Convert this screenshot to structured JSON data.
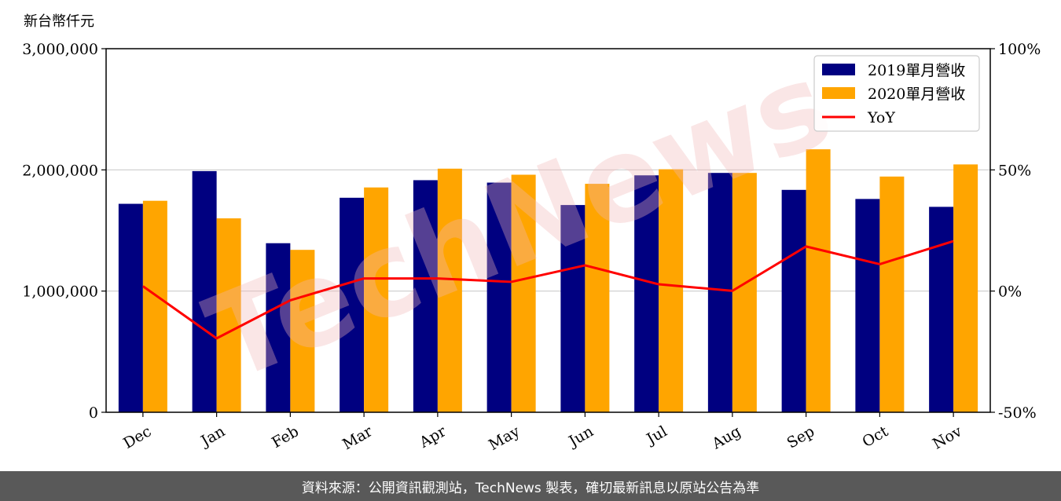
{
  "chart_data": {
    "type": "bar",
    "unit_label": "新台幣仟元",
    "categories": [
      "Dec",
      "Jan",
      "Feb",
      "Mar",
      "Apr",
      "May",
      "Jun",
      "Jul",
      "Aug",
      "Sep",
      "Oct",
      "Nov"
    ],
    "series": [
      {
        "name": "2019單月營收",
        "type": "bar",
        "axis": "left",
        "color": "#000080",
        "values": [
          1720000,
          1990000,
          1395000,
          1770000,
          1915000,
          1895000,
          1710000,
          1955000,
          1975000,
          1835000,
          1760000,
          1695000
        ]
      },
      {
        "name": "2020單月營收",
        "type": "bar",
        "axis": "left",
        "color": "#FFA500",
        "values": [
          1745000,
          1600000,
          1340000,
          1855000,
          2010000,
          1960000,
          1885000,
          2005000,
          1975000,
          2170000,
          1945000,
          2045000
        ]
      },
      {
        "name": "YoY",
        "type": "line",
        "axis": "right",
        "color": "#FF0000",
        "values": [
          2,
          -19.5,
          -3.8,
          5.2,
          5.2,
          3.8,
          10.6,
          2.8,
          0.1,
          18.4,
          11.1,
          20.6
        ]
      }
    ],
    "left_axis": {
      "ylim": [
        0,
        3000000
      ],
      "ticks": [
        "0",
        "1,000,000",
        "2,000,000",
        "3,000,000"
      ]
    },
    "right_axis": {
      "ylim": [
        -50,
        100
      ],
      "ticks": [
        "-50%",
        "0%",
        "50%",
        "100%"
      ]
    },
    "grid": "horizontal",
    "legend_position": "top-right",
    "title": "",
    "xlabel": "",
    "ylabel": ""
  },
  "watermark": "TechNews",
  "footer": {
    "text": "資料來源：公開資訊觀測站，TechNews 製表，確切最新訊息以原站公告為準"
  }
}
